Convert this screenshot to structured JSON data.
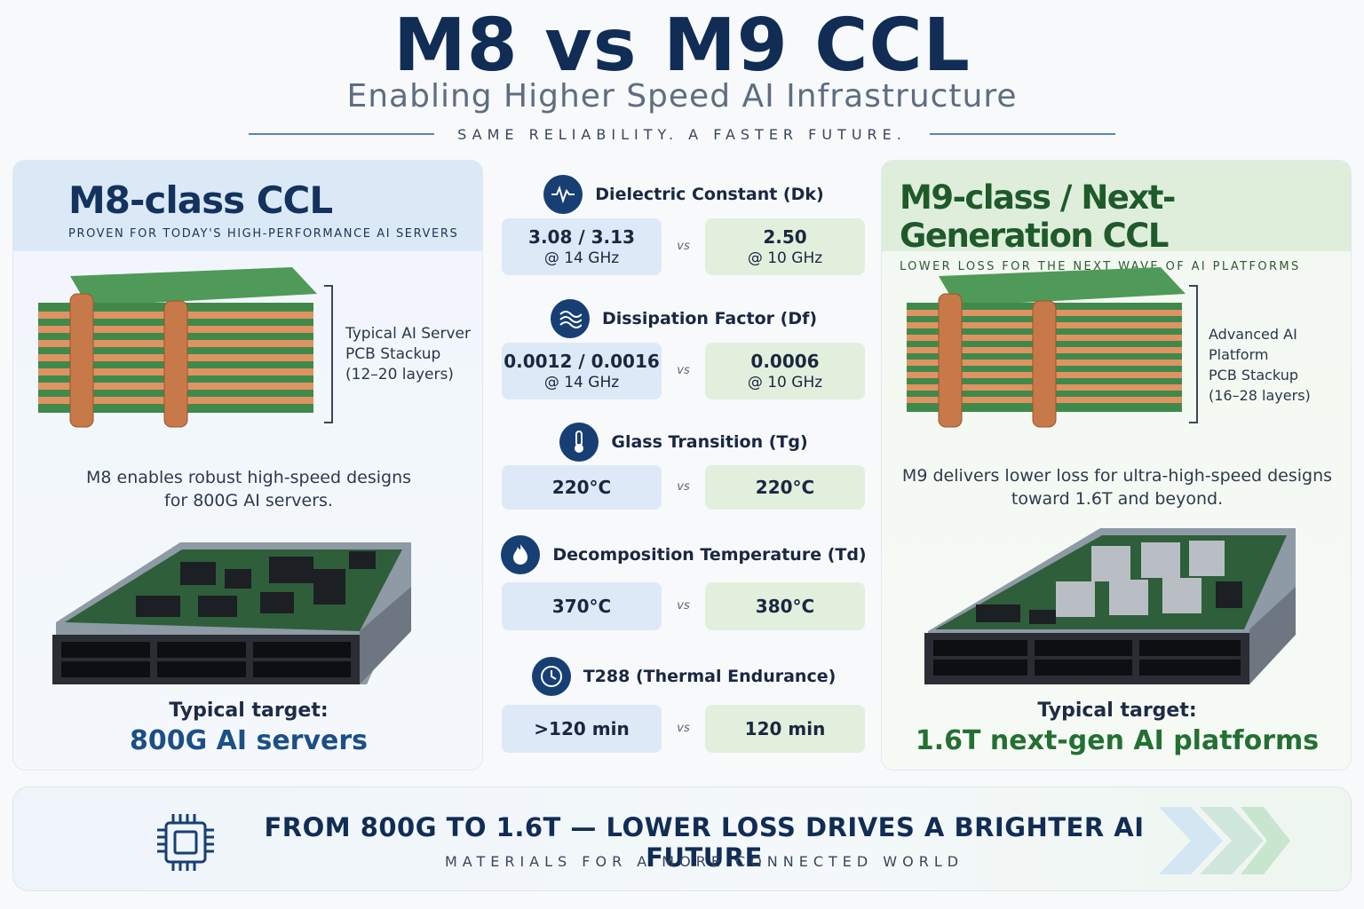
{
  "header": {
    "title": "M8 vs M9 CCL",
    "subtitle": "Enabling Higher Speed AI Infrastructure",
    "tagline": "SAME RELIABILITY. A FASTER FUTURE."
  },
  "m8_panel": {
    "title": "M8-class CCL",
    "subtitle": "PROVEN FOR TODAY'S HIGH-PERFORMANCE AI SERVERS",
    "stack_label": [
      "Typical AI Server",
      "PCB Stackup",
      "(12–20 layers)"
    ],
    "description": [
      "M8 enables robust high-speed designs",
      "for 800G AI servers."
    ],
    "target_label": "Typical target:",
    "target_value": "800G AI servers"
  },
  "m9_panel": {
    "title": "M9-class / Next-Generation CCL",
    "subtitle": "LOWER LOSS FOR THE NEXT WAVE OF AI PLATFORMS",
    "stack_label": [
      "Advanced AI Platform",
      "PCB Stackup",
      "(16–28 layers)"
    ],
    "description": [
      "M9 delivers lower loss for ultra-high-speed designs",
      "toward 1.6T and beyond."
    ],
    "target_label": "Typical target:",
    "target_value": "1.6T next-gen AI platforms"
  },
  "metrics": [
    {
      "name": "Dielectric Constant (Dk)",
      "icon": "waveform-icon",
      "m8": "3.08 / 3.13",
      "m8_sub": "@ 14 GHz",
      "m9": "2.50",
      "m9_sub": "@ 10 GHz"
    },
    {
      "name": "Dissipation Factor (Df)",
      "icon": "signal-loss-icon",
      "m8": "0.0012 / 0.0016",
      "m8_sub": "@ 14 GHz",
      "m9": "0.0006",
      "m9_sub": "@ 10 GHz"
    },
    {
      "name": "Glass Transition (Tg)",
      "icon": "thermometer-icon",
      "m8": "220°C",
      "m9": "220°C"
    },
    {
      "name": "Decomposition Temperature (Td)",
      "icon": "flame-icon",
      "m8": "370°C",
      "m9": "380°C"
    },
    {
      "name": "T288 (Thermal Endurance)",
      "icon": "clock-icon",
      "m8": ">120 min",
      "m9": "120 min"
    }
  ],
  "vs_label": "vs",
  "footer": {
    "title": "FROM 800G TO 1.6T — LOWER LOSS DRIVES A BRIGHTER AI FUTURE",
    "subtitle": "MATERIALS FOR A MORE CONNECTED WORLD",
    "icon": "chip-icon"
  },
  "colors": {
    "navy": "#112d55",
    "m8_blue": "#1c4f86",
    "m9_green": "#247033",
    "pcb_green": "#3f8a4a",
    "copper": "#d98c5a"
  }
}
